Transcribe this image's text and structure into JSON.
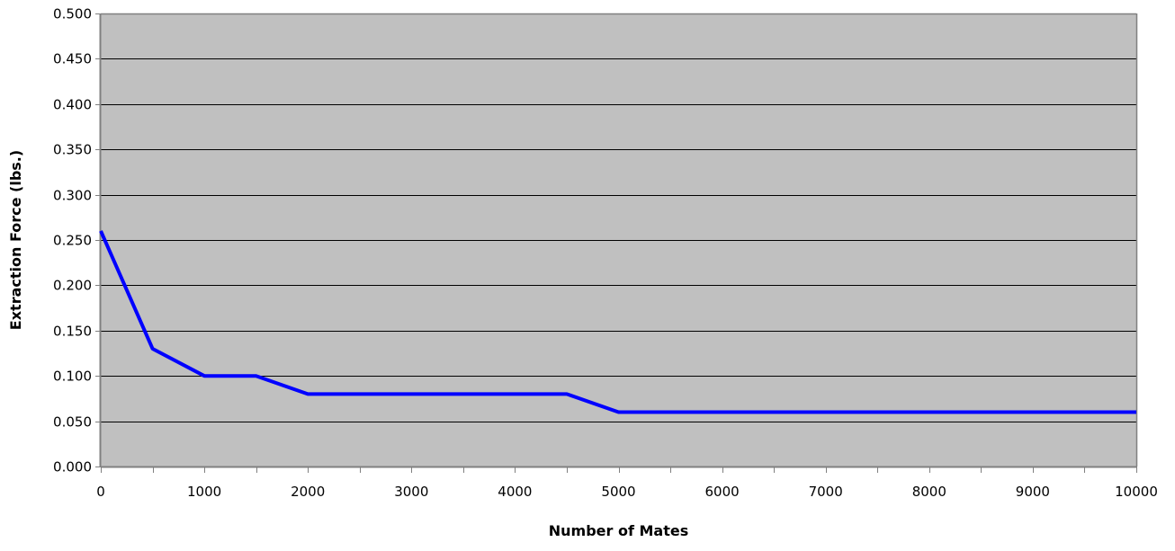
{
  "colors": {
    "plot_background": "#c0c0c0",
    "series_line": "#0000ff",
    "gridline": "#000000",
    "axis": "#808080"
  },
  "chart_data": {
    "type": "line",
    "title": "",
    "xlabel": "Number of Mates",
    "ylabel": "Extraction Force (lbs.)",
    "xlim": [
      0,
      10000
    ],
    "ylim": [
      0,
      0.5
    ],
    "grid": true,
    "x_tick_step": 1000,
    "x_minor_tick_step": 500,
    "y_tick_step": 0.05,
    "x_tick_labels": [
      "0",
      "1000",
      "2000",
      "3000",
      "4000",
      "5000",
      "6000",
      "7000",
      "8000",
      "9000",
      "10000"
    ],
    "y_tick_labels": [
      "0.000",
      "0.050",
      "0.100",
      "0.150",
      "0.200",
      "0.250",
      "0.300",
      "0.350",
      "0.400",
      "0.450",
      "0.500"
    ],
    "series": [
      {
        "x": [
          0,
          500,
          1000,
          1500,
          2000,
          2500,
          3000,
          3500,
          4000,
          4500,
          5000,
          5500,
          6000,
          6500,
          7000,
          7500,
          8000,
          8500,
          9000,
          9500,
          10000
        ],
        "y": [
          0.26,
          0.13,
          0.1,
          0.1,
          0.08,
          0.08,
          0.08,
          0.08,
          0.08,
          0.08,
          0.06,
          0.06,
          0.06,
          0.06,
          0.06,
          0.06,
          0.06,
          0.06,
          0.06,
          0.06,
          0.06
        ]
      }
    ]
  }
}
